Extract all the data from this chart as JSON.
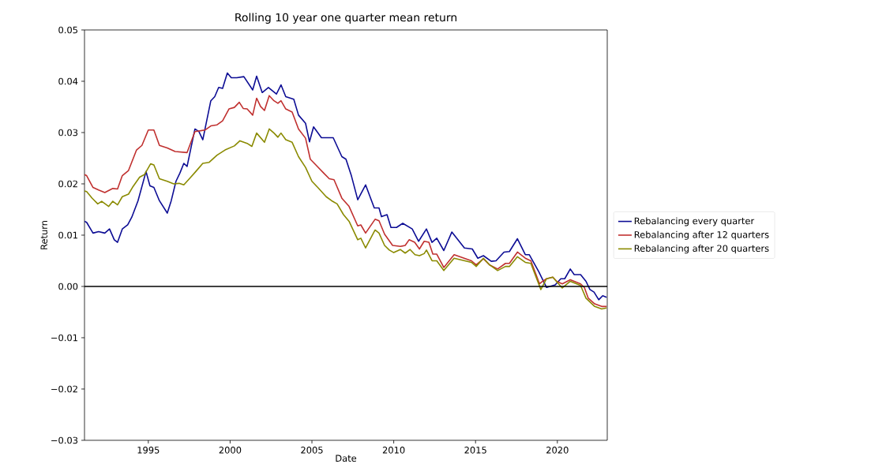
{
  "chart_data": {
    "type": "line",
    "title": "Rolling 10 year one quarter mean return",
    "xlabel": "Date",
    "ylabel": "Return",
    "xlim": [
      1991.1,
      2023.05
    ],
    "xticks": [
      1995,
      2000,
      2005,
      2010,
      2015,
      2020
    ],
    "ylim": [
      -0.03,
      0.05
    ],
    "yticks": [
      {
        "value": -0.03,
        "label": "−0.03"
      },
      {
        "value": -0.02,
        "label": "−0.02"
      },
      {
        "value": -0.01,
        "label": "−0.01"
      },
      {
        "value": 0,
        "label": "0.00"
      },
      {
        "value": 0.01,
        "label": "0.01"
      },
      {
        "value": 0.02,
        "label": "0.02"
      },
      {
        "value": 0.03,
        "label": "0.03"
      },
      {
        "value": 0.04,
        "label": "0.04"
      },
      {
        "value": 0.05,
        "label": "0.05"
      }
    ],
    "grid": false,
    "legend": "right",
    "ref_lines": [
      {
        "axis": "y",
        "value": 0,
        "color": "#000000"
      }
    ],
    "series": [
      {
        "name": "Rebalancing every quarter",
        "color": "#0c0c94",
        "x": [
          1991.1,
          1991.23,
          1991.62,
          1991.96,
          1992.34,
          1992.63,
          1992.92,
          1993.12,
          1993.41,
          1993.74,
          1993.99,
          1994.37,
          1994.86,
          1995.1,
          1995.34,
          1995.68,
          1996.16,
          1996.4,
          1996.69,
          1996.93,
          1997.17,
          1997.37,
          1997.85,
          1998.09,
          1998.33,
          1998.82,
          1999.06,
          1999.3,
          1999.54,
          1999.83,
          2000.07,
          2000.41,
          2000.84,
          2001.38,
          2001.62,
          2001.96,
          2002.34,
          2002.83,
          2003.11,
          2003.4,
          2003.89,
          2004.18,
          2004.61,
          2004.85,
          2005.1,
          2005.58,
          2006.3,
          2006.83,
          2007.08,
          2007.41,
          2007.8,
          2008.28,
          2008.81,
          2009.1,
          2009.25,
          2009.59,
          2009.83,
          2010.17,
          2010.55,
          2011.13,
          2011.52,
          2012.0,
          2012.34,
          2012.63,
          2013.06,
          2013.55,
          2014.32,
          2014.8,
          2015.14,
          2015.48,
          2015.96,
          2016.25,
          2016.74,
          2017.07,
          2017.56,
          2018.04,
          2018.28,
          2018.86,
          2019.34,
          2019.87,
          2020.21,
          2020.45,
          2020.79,
          2021.03,
          2021.42,
          2021.75,
          2021.99,
          2022.24,
          2022.53,
          2022.77,
          2023.01
        ],
        "values": [
          0.0127,
          0.0125,
          0.0104,
          0.0107,
          0.0104,
          0.0112,
          0.0091,
          0.0086,
          0.0112,
          0.012,
          0.0135,
          0.0167,
          0.0224,
          0.0196,
          0.0193,
          0.0167,
          0.0143,
          0.0167,
          0.0205,
          0.0221,
          0.024,
          0.0234,
          0.0307,
          0.0302,
          0.0286,
          0.0362,
          0.037,
          0.0388,
          0.0386,
          0.0416,
          0.0407,
          0.0407,
          0.0409,
          0.0383,
          0.041,
          0.0378,
          0.0388,
          0.0375,
          0.0393,
          0.037,
          0.0365,
          0.0334,
          0.0318,
          0.0282,
          0.0311,
          0.029,
          0.029,
          0.0253,
          0.0248,
          0.0216,
          0.0169,
          0.0198,
          0.0153,
          0.0153,
          0.0136,
          0.014,
          0.0115,
          0.0115,
          0.0123,
          0.0112,
          0.0088,
          0.0112,
          0.0086,
          0.0094,
          0.007,
          0.0106,
          0.0075,
          0.0073,
          0.0055,
          0.006,
          0.0049,
          0.005,
          0.0067,
          0.0068,
          0.0093,
          0.0062,
          0.0062,
          0.0029,
          -0.0002,
          0.0003,
          0.0015,
          0.0015,
          0.0034,
          0.0023,
          0.0023,
          0.001,
          -0.0006,
          -0.0011,
          -0.0026,
          -0.0018,
          -0.0021
        ]
      },
      {
        "name": "Rebalancing after 12 quarters",
        "color": "#c0302f",
        "x": [
          1991.1,
          1991.23,
          1991.62,
          1991.96,
          1992.34,
          1992.83,
          1993.12,
          1993.41,
          1993.79,
          1994.28,
          1994.61,
          1995.0,
          1995.34,
          1995.68,
          1996.16,
          1996.64,
          1997.37,
          1997.85,
          1998.48,
          1998.82,
          1999.2,
          1999.54,
          1999.93,
          2000.26,
          2000.56,
          2000.8,
          2001.04,
          2001.38,
          2001.62,
          2001.86,
          2002.1,
          2002.39,
          2002.68,
          2002.92,
          2003.11,
          2003.4,
          2003.79,
          2004.18,
          2004.61,
          2004.9,
          2005.24,
          2005.72,
          2006.06,
          2006.35,
          2006.83,
          2007.27,
          2007.8,
          2007.99,
          2008.28,
          2008.86,
          2009.1,
          2009.44,
          2009.93,
          2010.41,
          2010.7,
          2010.94,
          2011.28,
          2011.57,
          2011.86,
          2012.15,
          2012.39,
          2012.63,
          2013.06,
          2013.69,
          2014.75,
          2015.04,
          2015.48,
          2015.86,
          2016.35,
          2016.83,
          2017.07,
          2017.56,
          2018.04,
          2018.38,
          2018.91,
          2019.1,
          2019.34,
          2019.72,
          2019.96,
          2020.3,
          2020.79,
          2021.42,
          2021.65,
          2021.89,
          2022.28,
          2022.71,
          2023.01
        ],
        "values": [
          0.0218,
          0.0216,
          0.0193,
          0.0188,
          0.0183,
          0.0191,
          0.019,
          0.0216,
          0.0226,
          0.0266,
          0.0275,
          0.0305,
          0.0305,
          0.0275,
          0.027,
          0.0263,
          0.0261,
          0.0302,
          0.0305,
          0.0313,
          0.0315,
          0.0323,
          0.0346,
          0.0349,
          0.0359,
          0.0347,
          0.0346,
          0.0334,
          0.0367,
          0.0351,
          0.0343,
          0.0372,
          0.0362,
          0.0357,
          0.0362,
          0.0346,
          0.034,
          0.0307,
          0.0289,
          0.0248,
          0.0237,
          0.0221,
          0.021,
          0.0208,
          0.0172,
          0.0156,
          0.0118,
          0.012,
          0.0104,
          0.0131,
          0.0128,
          0.0102,
          0.008,
          0.0078,
          0.008,
          0.0091,
          0.0086,
          0.0073,
          0.0088,
          0.0086,
          0.0063,
          0.0063,
          0.0037,
          0.0062,
          0.005,
          0.0042,
          0.0054,
          0.0042,
          0.0034,
          0.0045,
          0.0045,
          0.0067,
          0.0055,
          0.005,
          0.0005,
          0.001,
          0.0015,
          0.0018,
          0.001,
          0.0005,
          0.0013,
          0.0005,
          -0.0002,
          -0.0023,
          -0.0034,
          -0.0039,
          -0.0039
        ]
      },
      {
        "name": "Rebalancing after 20 quarters",
        "color": "#8a8a00",
        "x": [
          1991.1,
          1991.23,
          1991.57,
          1991.91,
          1992.15,
          1992.58,
          1992.83,
          1993.12,
          1993.41,
          1993.79,
          1994.03,
          1994.47,
          1994.76,
          1995.14,
          1995.34,
          1995.68,
          1996.16,
          1996.55,
          1996.88,
          1997.17,
          1997.51,
          1997.9,
          1998.33,
          1998.72,
          1999.2,
          1999.69,
          2000.26,
          2000.6,
          2001.04,
          2001.33,
          2001.62,
          2002.1,
          2002.39,
          2002.68,
          2002.92,
          2003.11,
          2003.4,
          2003.79,
          2004.18,
          2004.61,
          2005.0,
          2005.39,
          2005.87,
          2006.21,
          2006.54,
          2006.93,
          2007.27,
          2007.8,
          2007.99,
          2008.28,
          2008.86,
          2009.1,
          2009.44,
          2009.73,
          2010.0,
          2010.4,
          2010.7,
          2011.0,
          2011.3,
          2011.57,
          2011.86,
          2012.0,
          2012.34,
          2012.63,
          2013.06,
          2013.69,
          2014.75,
          2015.04,
          2015.48,
          2015.86,
          2016.35,
          2016.83,
          2017.07,
          2017.56,
          2018.04,
          2018.38,
          2018.99,
          2019.34,
          2019.72,
          2020.3,
          2020.79,
          2021.42,
          2021.75,
          2022.28,
          2022.71,
          2023.01
        ],
        "values": [
          0.0186,
          0.0185,
          0.0172,
          0.0161,
          0.0166,
          0.0156,
          0.0166,
          0.0159,
          0.0175,
          0.018,
          0.0193,
          0.0213,
          0.0218,
          0.0239,
          0.0237,
          0.021,
          0.0205,
          0.02,
          0.0201,
          0.0198,
          0.021,
          0.0224,
          0.024,
          0.0242,
          0.0256,
          0.0266,
          0.0274,
          0.0284,
          0.0279,
          0.0273,
          0.0299,
          0.0281,
          0.0307,
          0.0299,
          0.0291,
          0.0299,
          0.0286,
          0.0281,
          0.0253,
          0.0232,
          0.0205,
          0.0192,
          0.0175,
          0.0167,
          0.0161,
          0.014,
          0.0127,
          0.0091,
          0.0094,
          0.0075,
          0.011,
          0.0104,
          0.008,
          0.0071,
          0.0066,
          0.0072,
          0.0065,
          0.0072,
          0.0062,
          0.006,
          0.0064,
          0.0071,
          0.005,
          0.005,
          0.0031,
          0.0055,
          0.0047,
          0.0039,
          0.0055,
          0.0042,
          0.0031,
          0.0039,
          0.0039,
          0.0058,
          0.0047,
          0.0045,
          -0.0006,
          0.0015,
          0.0018,
          -0.0003,
          0.001,
          0.0002,
          -0.0023,
          -0.0039,
          -0.0044,
          -0.0042
        ]
      }
    ]
  }
}
